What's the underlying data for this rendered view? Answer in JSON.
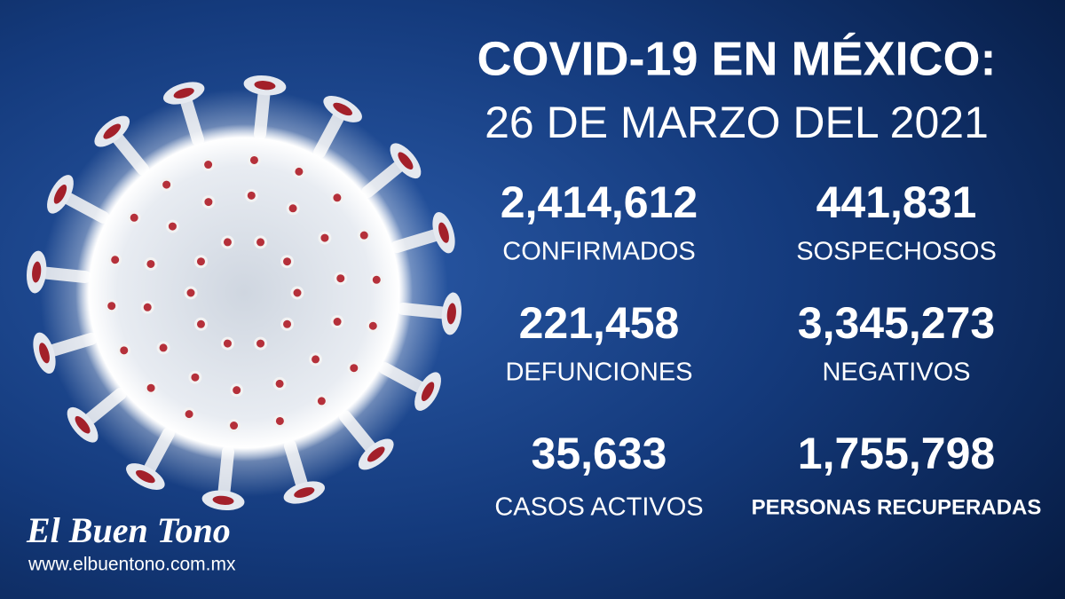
{
  "header": {
    "title": "COVID-19 EN MÉXICO:",
    "date": "26 DE MARZO DEL 2021"
  },
  "stats": [
    {
      "value": "2,414,612",
      "label": "CONFIRMADOS"
    },
    {
      "value": "441,831",
      "label": "SOSPECHOSOS"
    },
    {
      "value": "221,458",
      "label": "DEFUNCIONES"
    },
    {
      "value": "3,345,273",
      "label": "NEGATIVOS"
    },
    {
      "value": "35,633",
      "label": "CASOS ACTIVOS"
    },
    {
      "value": "1,755,798",
      "label": "PERSONAS RECUPERADAS"
    }
  ],
  "brand": {
    "name": "El Buen Tono",
    "url": "www.elbuentono.com.mx"
  }
}
